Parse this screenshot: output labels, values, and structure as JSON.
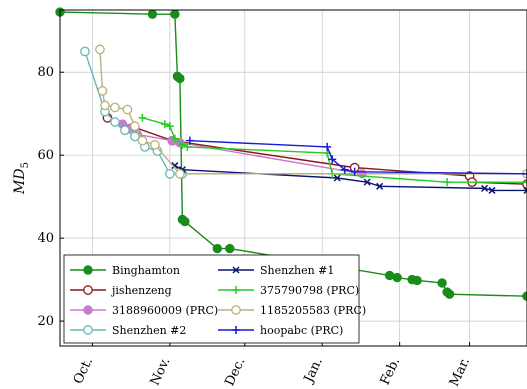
{
  "chart_data": {
    "type": "line",
    "title": "",
    "xlabel": "",
    "ylabel": "MD",
    "ylabel_subscript": "5",
    "xlim": [
      "2021-09-18",
      "2022-03-24"
    ],
    "ylim": [
      14,
      95
    ],
    "y_ticks": [
      20,
      40,
      60,
      80
    ],
    "x_ticks": [
      {
        "date": "2021-10-01",
        "label": "Oct."
      },
      {
        "date": "2021-11-01",
        "label": "Nov."
      },
      {
        "date": "2021-12-01",
        "label": "Dec."
      },
      {
        "date": "2022-01-01",
        "label": "Jan."
      },
      {
        "date": "2022-02-01",
        "label": "Feb."
      },
      {
        "date": "2022-03-01",
        "label": "Mar."
      }
    ],
    "grid": true,
    "legend_position": "bottom-left",
    "series": [
      {
        "name": "Binghamton",
        "color": "#1a8c1a",
        "marker": "filled-circle",
        "points": [
          [
            "2021-09-18",
            94.5
          ],
          [
            "2021-10-25",
            94
          ],
          [
            "2021-11-03",
            94
          ],
          [
            "2021-11-04",
            79
          ],
          [
            "2021-11-05",
            78.5
          ],
          [
            "2021-11-06",
            44.5
          ],
          [
            "2021-11-07",
            44
          ],
          [
            "2021-11-20",
            37.5
          ],
          [
            "2021-11-25",
            37.5
          ],
          [
            "2022-01-28",
            31
          ],
          [
            "2022-01-31",
            30.5
          ],
          [
            "2022-02-06",
            30
          ],
          [
            "2022-02-08",
            29.8
          ],
          [
            "2022-02-18",
            29.2
          ],
          [
            "2022-02-20",
            27
          ],
          [
            "2022-02-21",
            26.5
          ],
          [
            "2022-03-24",
            26
          ],
          [
            "2022-03-24",
            26
          ]
        ]
      },
      {
        "name": "jishenzeng",
        "color": "#8b1a1a",
        "marker": "open-circle",
        "points": [
          [
            "2021-10-07",
            69
          ],
          [
            "2021-11-02",
            63.5
          ],
          [
            "2022-01-14",
            57
          ],
          [
            "2022-03-01",
            55
          ],
          [
            "2022-03-02",
            53.5
          ],
          [
            "2022-03-24",
            53
          ]
        ]
      },
      {
        "name": "3188960009 (PRC)",
        "color": "#c87ad2",
        "marker": "filled-circle",
        "points": [
          [
            "2021-10-13",
            67.5
          ],
          [
            "2021-10-16",
            66.5
          ],
          [
            "2021-10-19",
            65
          ],
          [
            "2021-11-02",
            63.5
          ],
          [
            "2021-11-05",
            63
          ],
          [
            "2022-01-17",
            55.5
          ],
          [
            "2022-03-24",
            55.5
          ]
        ]
      },
      {
        "name": "Shenzhen #2",
        "color": "#66b8b8",
        "marker": "open-circle",
        "points": [
          [
            "2021-09-28",
            85
          ],
          [
            "2021-10-06",
            70.5
          ],
          [
            "2021-10-10",
            68
          ],
          [
            "2021-10-14",
            66
          ],
          [
            "2021-10-18",
            64.5
          ],
          [
            "2021-10-22",
            62
          ],
          [
            "2021-10-27",
            61
          ],
          [
            "2021-11-01",
            55.5
          ],
          [
            "2021-11-06",
            55.5
          ],
          [
            "2022-03-24",
            55.5
          ]
        ]
      },
      {
        "name": "Shenzhen #1",
        "color": "#0a1470",
        "marker": "x",
        "points": [
          [
            "2021-11-03",
            57.5
          ],
          [
            "2021-11-06",
            56.5
          ],
          [
            "2022-01-07",
            54.5
          ],
          [
            "2022-01-19",
            53.5
          ],
          [
            "2022-01-24",
            52.5
          ],
          [
            "2022-03-07",
            52
          ],
          [
            "2022-03-10",
            51.5
          ],
          [
            "2022-03-24",
            51.5
          ]
        ]
      },
      {
        "name": "375790798 (PRC)",
        "color": "#22cc22",
        "marker": "plus",
        "points": [
          [
            "2021-10-21",
            69
          ],
          [
            "2021-10-30",
            67.5
          ],
          [
            "2021-11-01",
            67
          ],
          [
            "2021-11-03",
            64
          ],
          [
            "2021-11-06",
            62.5
          ],
          [
            "2021-11-08",
            62
          ],
          [
            "2022-01-03",
            60.5
          ],
          [
            "2022-01-05",
            55.5
          ],
          [
            "2022-02-20",
            53.5
          ],
          [
            "2022-03-24",
            53.5
          ]
        ]
      },
      {
        "name": "1185205583 (PRC)",
        "color": "#b8b37a",
        "marker": "open-circle",
        "points": [
          [
            "2021-10-04",
            85.5
          ],
          [
            "2021-10-05",
            75.5
          ],
          [
            "2021-10-06",
            72
          ],
          [
            "2021-10-10",
            71.5
          ],
          [
            "2021-10-15",
            71
          ],
          [
            "2021-10-18",
            67
          ],
          [
            "2021-10-21",
            63.5
          ],
          [
            "2021-10-26",
            62.5
          ],
          [
            "2021-11-05",
            55.5
          ],
          [
            "2022-03-24",
            55.5
          ]
        ]
      },
      {
        "name": "hoopabc (PRC)",
        "color": "#1a1ad9",
        "marker": "plus",
        "points": [
          [
            "2021-11-09",
            63.5
          ],
          [
            "2022-01-03",
            62
          ],
          [
            "2022-01-05",
            59
          ],
          [
            "2022-01-10",
            56.5
          ],
          [
            "2022-01-14",
            56
          ],
          [
            "2022-03-24",
            55.5
          ]
        ]
      }
    ]
  }
}
